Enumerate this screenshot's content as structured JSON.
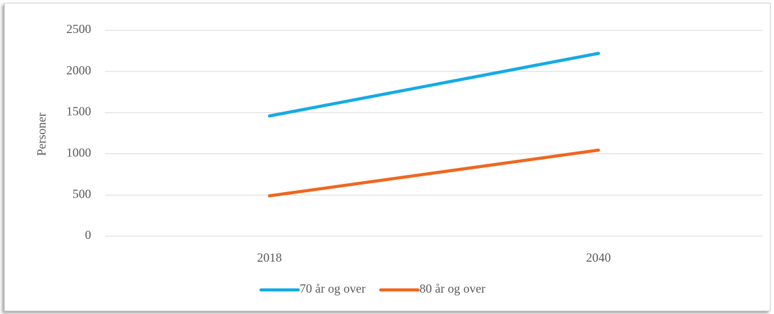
{
  "chart_data": {
    "type": "line",
    "y_label": "Personer",
    "categories": [
      "2018",
      "2040"
    ],
    "series": [
      {
        "name": "70 år og over",
        "color": "#14aae6",
        "values": [
          1460,
          2220
        ]
      },
      {
        "name": "80 år og over",
        "color": "#f0661e",
        "values": [
          490,
          1045
        ]
      }
    ],
    "ylim": [
      0,
      2500
    ],
    "yticks": [
      0,
      500,
      1000,
      1500,
      2000,
      2500
    ],
    "grid": true,
    "legend": "bottom"
  }
}
